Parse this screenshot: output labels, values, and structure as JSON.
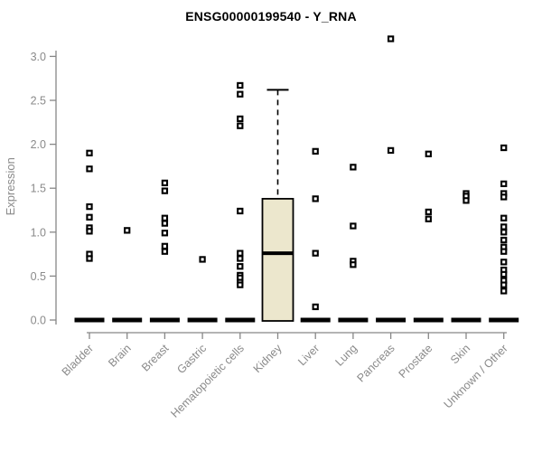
{
  "title": "ENSG00000199540 - Y_RNA",
  "colors": {
    "background": "#ffffff",
    "title_text": "#000000",
    "axis_line": "#878787",
    "axis_text": "#8a8a8a",
    "box_fill": "#ECE7CD",
    "box_stroke": "#000000",
    "marker": "#000000",
    "marker_hole": "#ffffff"
  },
  "chart_data": {
    "type": "boxplot",
    "title": "ENSG00000199540 - Y_RNA",
    "xlabel": "",
    "ylabel": "Expression",
    "ylim": [
      0.0,
      3.2
    ],
    "yticks": [
      0.0,
      0.5,
      1.0,
      1.5,
      2.0,
      2.5,
      3.0
    ],
    "grid": false,
    "legend": "none",
    "categories": [
      "Bladder",
      "Brain",
      "Breast",
      "Gastric",
      "Hematopoietic cells",
      "Kidney",
      "Liver",
      "Lung",
      "Pancreas",
      "Prostate",
      "Skin",
      "Unknown / Other"
    ],
    "series": [
      {
        "name": "Bladder",
        "q1": 0.0,
        "median": 0.0,
        "q3": 0.0,
        "whisker_low": 0.0,
        "whisker_high": 0.0,
        "points": [
          1.9,
          1.72,
          1.29,
          1.17,
          1.05,
          1.01,
          0.75,
          0.7
        ]
      },
      {
        "name": "Brain",
        "q1": 0.0,
        "median": 0.0,
        "q3": 0.0,
        "whisker_low": 0.0,
        "whisker_high": 0.0,
        "points": [
          1.02
        ]
      },
      {
        "name": "Breast",
        "q1": 0.0,
        "median": 0.0,
        "q3": 0.0,
        "whisker_low": 0.0,
        "whisker_high": 0.0,
        "points": [
          1.56,
          1.47,
          1.16,
          1.1,
          0.99,
          0.84,
          0.78
        ]
      },
      {
        "name": "Gastric",
        "q1": 0.0,
        "median": 0.0,
        "q3": 0.0,
        "whisker_low": 0.0,
        "whisker_high": 0.0,
        "points": [
          0.69
        ]
      },
      {
        "name": "Hematopoietic cells",
        "q1": 0.0,
        "median": 0.0,
        "q3": 0.0,
        "whisker_low": 0.0,
        "whisker_high": 0.0,
        "points": [
          2.67,
          2.57,
          2.29,
          2.21,
          1.24,
          0.76,
          0.7,
          0.61,
          0.51,
          0.48,
          0.43,
          0.4
        ]
      },
      {
        "name": "Kidney",
        "q1": 0.0,
        "median": 0.76,
        "q3": 1.38,
        "whisker_low": 0.0,
        "whisker_high": 2.62,
        "points": []
      },
      {
        "name": "Liver",
        "q1": 0.0,
        "median": 0.0,
        "q3": 0.0,
        "whisker_low": 0.0,
        "whisker_high": 0.0,
        "points": [
          1.92,
          1.38,
          0.76,
          0.15
        ]
      },
      {
        "name": "Lung",
        "q1": 0.0,
        "median": 0.0,
        "q3": 0.0,
        "whisker_low": 0.0,
        "whisker_high": 0.0,
        "points": [
          1.74,
          1.07,
          0.67,
          0.63
        ]
      },
      {
        "name": "Pancreas",
        "q1": 0.0,
        "median": 0.0,
        "q3": 0.0,
        "whisker_low": 0.0,
        "whisker_high": 0.0,
        "points": [
          3.2,
          1.93
        ]
      },
      {
        "name": "Prostate",
        "q1": 0.0,
        "median": 0.0,
        "q3": 0.0,
        "whisker_low": 0.0,
        "whisker_high": 0.0,
        "points": [
          1.89,
          1.23,
          1.15
        ]
      },
      {
        "name": "Skin",
        "q1": 0.0,
        "median": 0.0,
        "q3": 0.0,
        "whisker_low": 0.0,
        "whisker_high": 0.0,
        "points": [
          1.44,
          1.41,
          1.36
        ]
      },
      {
        "name": "Unknown / Other",
        "q1": 0.0,
        "median": 0.0,
        "q3": 0.0,
        "whisker_low": 0.0,
        "whisker_high": 0.0,
        "points": [
          1.96,
          1.55,
          1.44,
          1.4,
          1.16,
          1.06,
          1.0,
          0.91,
          0.83,
          0.78,
          0.66,
          0.57,
          0.52,
          0.45,
          0.4,
          0.33
        ]
      }
    ]
  }
}
